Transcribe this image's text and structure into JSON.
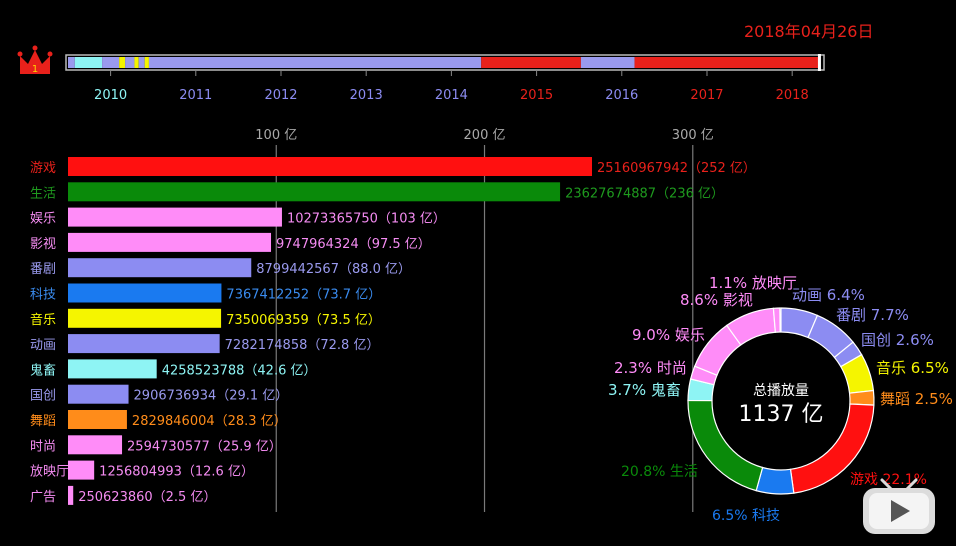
{
  "date": "2018年04月26日",
  "rank_badge": "1",
  "timeline": {
    "years": [
      "2010",
      "2011",
      "2012",
      "2013",
      "2014",
      "2015",
      "2016",
      "2017",
      "2018"
    ],
    "year_colors": [
      "#8ef4f4",
      "#8c8cf2",
      "#8c8cf2",
      "#8c8cf2",
      "#8c8cf2",
      "#e8211b",
      "#8c8cf2",
      "#e8211b",
      "#e8211b"
    ],
    "segments": [
      {
        "start": 2009.5,
        "end": 2009.58,
        "color": "#9a9aee"
      },
      {
        "start": 2009.58,
        "end": 2009.9,
        "color": "#8ef4f4"
      },
      {
        "start": 2009.9,
        "end": 2010.1,
        "color": "#9a9aee"
      },
      {
        "start": 2010.1,
        "end": 2010.17,
        "color": "#f5f500"
      },
      {
        "start": 2010.17,
        "end": 2010.28,
        "color": "#9a9aee"
      },
      {
        "start": 2010.28,
        "end": 2010.33,
        "color": "#f5f500"
      },
      {
        "start": 2010.33,
        "end": 2010.4,
        "color": "#9a9aee"
      },
      {
        "start": 2010.4,
        "end": 2010.45,
        "color": "#f5f500"
      },
      {
        "start": 2010.45,
        "end": 2014.35,
        "color": "#9a9aee"
      },
      {
        "start": 2014.35,
        "end": 2015.52,
        "color": "#e8211b"
      },
      {
        "start": 2015.52,
        "end": 2016.15,
        "color": "#9a9aee"
      },
      {
        "start": 2016.15,
        "end": 2018.33,
        "color": "#e8211b"
      }
    ],
    "current": 2018.32
  },
  "chart_data": {
    "type": "bar",
    "x_ticks": [
      {
        "value": 10000000000,
        "label": "100 亿"
      },
      {
        "value": 20000000000,
        "label": "200 亿"
      },
      {
        "value": 30000000000,
        "label": "300 亿"
      }
    ],
    "bars": [
      {
        "category": "游戏",
        "value": 25160967942,
        "label": "25160967942（252 亿）",
        "color": "#ff1010",
        "text_color": "#e8211b"
      },
      {
        "category": "生活",
        "value": 23627674887,
        "label": "23627674887（236 亿）",
        "color": "#0a8a0a",
        "text_color": "#1e9a1e"
      },
      {
        "category": "娱乐",
        "value": 10273365750,
        "label": "10273365750（103 亿）",
        "color": "#ff8cf8",
        "text_color": "#f58cf2"
      },
      {
        "category": "影视",
        "value": 9747964324,
        "label": "9747964324（97.5 亿）",
        "color": "#ff8cf8",
        "text_color": "#f58cf2"
      },
      {
        "category": "番剧",
        "value": 8799442567,
        "label": "8799442567（88.0 亿）",
        "color": "#8c8cf2",
        "text_color": "#9a9aee"
      },
      {
        "category": "科技",
        "value": 7367412252,
        "label": "7367412252（73.7 亿）",
        "color": "#1a7af0",
        "text_color": "#3a8cf0"
      },
      {
        "category": "音乐",
        "value": 7350069359,
        "label": "7350069359（73.5 亿）",
        "color": "#f5f500",
        "text_color": "#f5f500"
      },
      {
        "category": "动画",
        "value": 7282174858,
        "label": "7282174858（72.8 亿）",
        "color": "#8c8cf2",
        "text_color": "#9a9aee"
      },
      {
        "category": "鬼畜",
        "value": 4258523788,
        "label": "4258523788（42.6 亿）",
        "color": "#8ef4f4",
        "text_color": "#8ef4f4"
      },
      {
        "category": "国创",
        "value": 2906736934,
        "label": "2906736934（29.1 亿）",
        "color": "#8c8cf2",
        "text_color": "#9a9aee"
      },
      {
        "category": "舞蹈",
        "value": 2829846004,
        "label": "2829846004（28.3 亿）",
        "color": "#ff8c1a",
        "text_color": "#ff8c1a"
      },
      {
        "category": "时尚",
        "value": 2594730577,
        "label": "2594730577（25.9 亿）",
        "color": "#ff8cf8",
        "text_color": "#f58cf2"
      },
      {
        "category": "放映厅",
        "value": 1256804993,
        "label": "1256804993（12.6 亿）",
        "color": "#ff8cf8",
        "text_color": "#f58cf2"
      },
      {
        "category": "广告",
        "value": 250623860,
        "label": "250623860（2.5 亿）",
        "color": "#ff8cf8",
        "text_color": "#f58cf2"
      }
    ]
  },
  "donut": {
    "center_title": "总播放量",
    "center_value": "1137 亿",
    "slices": [
      {
        "name": "动画",
        "percent": 6.4,
        "label": "动画 6.4%",
        "color": "#8c8cf2"
      },
      {
        "name": "番剧",
        "percent": 7.7,
        "label": "番剧 7.7%",
        "color": "#8c8cf2"
      },
      {
        "name": "国创",
        "percent": 2.6,
        "label": "国创 2.6%",
        "color": "#8c8cf2"
      },
      {
        "name": "音乐",
        "percent": 6.5,
        "label": "音乐 6.5%",
        "color": "#f5f500"
      },
      {
        "name": "舞蹈",
        "percent": 2.5,
        "label": "舞蹈 2.5%",
        "color": "#ff8c1a"
      },
      {
        "name": "游戏",
        "percent": 22.1,
        "label": "游戏 22.1%",
        "color": "#ff1010"
      },
      {
        "name": "科技",
        "percent": 6.5,
        "label": "6.5%  科技",
        "color": "#1a7af0"
      },
      {
        "name": "生活",
        "percent": 20.8,
        "label": "20.8%  生活",
        "color": "#0a8a0a"
      },
      {
        "name": "鬼畜",
        "percent": 3.7,
        "label": "3.7%  鬼畜",
        "color": "#8ef4f4"
      },
      {
        "name": "时尚",
        "percent": 2.3,
        "label": "2.3%  时尚",
        "color": "#ff8cf8"
      },
      {
        "name": "娱乐",
        "percent": 9.0,
        "label": "9.0%  娱乐",
        "color": "#ff8cf8"
      },
      {
        "name": "影视",
        "percent": 8.6,
        "label": "8.6%  影视",
        "color": "#ff8cf8"
      },
      {
        "name": "放映厅",
        "percent": 1.1,
        "label": "1.1%  放映厅",
        "color": "#ff8cf8"
      }
    ]
  }
}
